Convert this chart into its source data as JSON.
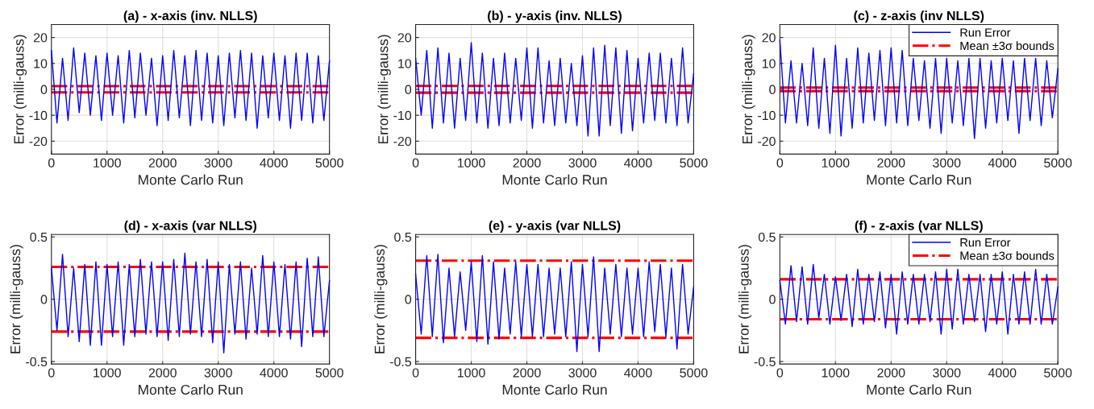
{
  "chart_data": [
    {
      "type": "line",
      "title": "(a) - x-axis (inv. NLLS)",
      "xlabel": "Monte Carlo Run",
      "ylabel": "Error (milli-gauss)",
      "xlim": [
        0,
        5000
      ],
      "xticks": [
        0,
        1000,
        2000,
        3000,
        4000,
        5000
      ],
      "ylim": [
        -25,
        25
      ],
      "yticks": [
        -20,
        -10,
        0,
        10,
        20
      ],
      "grid": true,
      "legend": false,
      "x": [
        0,
        100,
        200,
        300,
        400,
        500,
        600,
        700,
        800,
        900,
        1000,
        1100,
        1200,
        1300,
        1400,
        1500,
        1600,
        1700,
        1800,
        1900,
        2000,
        2100,
        2200,
        2300,
        2400,
        2500,
        2600,
        2700,
        2800,
        2900,
        3000,
        3100,
        3200,
        3300,
        3400,
        3500,
        3600,
        3700,
        3800,
        3900,
        4000,
        4100,
        4200,
        4300,
        4400,
        4500,
        4600,
        4700,
        4800,
        4900,
        5000
      ],
      "series": [
        {
          "color": "#0000ff",
          "values": [
            15,
            -13,
            12,
            -12,
            16,
            -9,
            14,
            -10,
            13,
            -12,
            14,
            -10,
            13,
            -13,
            15,
            -11,
            14,
            -10,
            12,
            -14,
            13,
            -12,
            15,
            -11,
            13,
            -14,
            15,
            -12,
            14,
            -13,
            13,
            -14,
            14,
            -11,
            15,
            -12,
            14,
            -15,
            13,
            -11,
            14,
            -12,
            13,
            -15,
            14,
            -12,
            14,
            -13,
            13,
            -12,
            11
          ]
        }
      ],
      "ref_lines": [
        {
          "axis": "y",
          "value": 1.2,
          "color": "#ff0000",
          "line_style": "dashdot"
        },
        {
          "axis": "y",
          "value": -1.2,
          "color": "#ff0000",
          "line_style": "dashdot"
        }
      ]
    },
    {
      "type": "line",
      "title": "(b) - y-axis (inv. NLLS)",
      "xlabel": "Monte Carlo Run",
      "ylabel": "Error (milli-gauss)",
      "xlim": [
        0,
        5000
      ],
      "xticks": [
        0,
        1000,
        2000,
        3000,
        4000,
        5000
      ],
      "ylim": [
        -25,
        25
      ],
      "yticks": [
        -20,
        -10,
        0,
        10,
        20
      ],
      "grid": true,
      "legend": false,
      "x": [
        0,
        100,
        200,
        300,
        400,
        500,
        600,
        700,
        800,
        900,
        1000,
        1100,
        1200,
        1300,
        1400,
        1500,
        1600,
        1700,
        1800,
        1900,
        2000,
        2100,
        2200,
        2300,
        2400,
        2500,
        2600,
        2700,
        2800,
        2900,
        3000,
        3100,
        3200,
        3300,
        3400,
        3500,
        3600,
        3700,
        3800,
        3900,
        4000,
        4100,
        4200,
        4300,
        4400,
        4500,
        4600,
        4700,
        4800,
        4900,
        5000
      ],
      "series": [
        {
          "color": "#0000ff",
          "values": [
            12,
            -10,
            15,
            -15,
            16,
            -13,
            14,
            -15,
            12,
            -12,
            18,
            -13,
            14,
            -15,
            12,
            -14,
            14,
            -13,
            12,
            -12,
            16,
            -15,
            16,
            -13,
            11,
            -14,
            12,
            -13,
            10,
            -14,
            13,
            -18,
            16,
            -18,
            17,
            -14,
            16,
            -17,
            15,
            -16,
            12,
            -13,
            14,
            -12,
            14,
            -13,
            12,
            -14,
            16,
            -13,
            6
          ]
        }
      ],
      "ref_lines": [
        {
          "axis": "y",
          "value": 1.3,
          "color": "#ff0000",
          "line_style": "dashdot"
        },
        {
          "axis": "y",
          "value": -1.3,
          "color": "#ff0000",
          "line_style": "dashdot"
        }
      ]
    },
    {
      "type": "line",
      "title": "(c) - z-axis (inv NLLS)",
      "xlabel": "Monte Carlo Run",
      "ylabel": "Error (milli-gauss)",
      "xlim": [
        0,
        5000
      ],
      "xticks": [
        0,
        1000,
        2000,
        3000,
        4000,
        5000
      ],
      "ylim": [
        -25,
        25
      ],
      "yticks": [
        -20,
        -10,
        0,
        10,
        20
      ],
      "grid": true,
      "legend": "top right",
      "x": [
        0,
        100,
        200,
        300,
        400,
        500,
        600,
        700,
        800,
        900,
        1000,
        1100,
        1200,
        1300,
        1400,
        1500,
        1600,
        1700,
        1800,
        1900,
        2000,
        2100,
        2200,
        2300,
        2400,
        2500,
        2600,
        2700,
        2800,
        2900,
        3000,
        3100,
        3200,
        3300,
        3400,
        3500,
        3600,
        3700,
        3800,
        3900,
        4000,
        4100,
        4200,
        4300,
        4400,
        4500,
        4600,
        4700,
        4800,
        4900,
        5000
      ],
      "series": [
        {
          "name": "Run Error",
          "color": "#0000ff",
          "values": [
            19,
            -13,
            11,
            -13,
            10,
            -14,
            16,
            -15,
            12,
            -17,
            17,
            -18,
            12,
            -15,
            16,
            -13,
            14,
            -12,
            15,
            -14,
            16,
            -13,
            15,
            -14,
            12,
            -12,
            11,
            -15,
            12,
            -17,
            12,
            -13,
            11,
            -14,
            12,
            -19,
            12,
            -15,
            11,
            -13,
            12,
            -12,
            11,
            -17,
            12,
            -12,
            12,
            -14,
            11,
            -11,
            8
          ]
        }
      ],
      "ref_lines": [
        {
          "axis": "y",
          "value": 0.7,
          "label": "Mean ±3σ bounds",
          "color": "#ff0000",
          "line_style": "dashdot"
        },
        {
          "axis": "y",
          "value": -0.7,
          "color": "#ff0000",
          "line_style": "dashdot"
        }
      ]
    },
    {
      "type": "line",
      "title": "(d) - x-axis (var NLLS)",
      "xlabel": "Monte Carlo Run",
      "ylabel": "Error (milli-gauss)",
      "xlim": [
        0,
        5000
      ],
      "xticks": [
        0,
        1000,
        2000,
        3000,
        4000,
        5000
      ],
      "ylim": [
        -0.52,
        0.52
      ],
      "yticks": [
        -0.5,
        0,
        0.5
      ],
      "grid": true,
      "legend": false,
      "x": [
        0,
        100,
        200,
        300,
        400,
        500,
        600,
        700,
        800,
        900,
        1000,
        1100,
        1200,
        1300,
        1400,
        1500,
        1600,
        1700,
        1800,
        1900,
        2000,
        2100,
        2200,
        2300,
        2400,
        2500,
        2600,
        2700,
        2800,
        2900,
        3000,
        3100,
        3200,
        3300,
        3400,
        3500,
        3600,
        3700,
        3800,
        3900,
        4000,
        4100,
        4200,
        4300,
        4400,
        4500,
        4600,
        4700,
        4800,
        4900,
        5000
      ],
      "series": [
        {
          "color": "#0000ff",
          "values": [
            0.25,
            -0.25,
            0.36,
            -0.3,
            0.25,
            -0.34,
            0.28,
            -0.37,
            0.3,
            -0.37,
            0.28,
            -0.3,
            0.3,
            -0.37,
            0.28,
            -0.3,
            0.32,
            -0.28,
            0.3,
            -0.3,
            0.3,
            -0.33,
            0.32,
            -0.3,
            0.37,
            -0.28,
            0.3,
            -0.3,
            0.32,
            -0.35,
            0.3,
            -0.43,
            0.28,
            -0.28,
            0.3,
            -0.32,
            0.25,
            -0.28,
            0.35,
            -0.3,
            0.3,
            -0.3,
            0.28,
            -0.32,
            0.3,
            -0.38,
            0.33,
            -0.3,
            0.34,
            -0.3,
            0.15
          ]
        }
      ],
      "ref_lines": [
        {
          "axis": "y",
          "value": 0.26,
          "color": "#ff0000",
          "line_style": "dashdot"
        },
        {
          "axis": "y",
          "value": -0.26,
          "color": "#ff0000",
          "line_style": "dashdot"
        }
      ]
    },
    {
      "type": "line",
      "title": "(e) - y-axis (var NLLS)",
      "xlabel": "Monte Carlo Run",
      "ylabel": "Error (milli-gauss)",
      "xlim": [
        0,
        5000
      ],
      "xticks": [
        0,
        1000,
        2000,
        3000,
        4000,
        5000
      ],
      "ylim": [
        -0.52,
        0.52
      ],
      "yticks": [
        -0.5,
        0,
        0.5
      ],
      "grid": true,
      "legend": false,
      "x": [
        0,
        100,
        200,
        300,
        400,
        500,
        600,
        700,
        800,
        900,
        1000,
        1100,
        1200,
        1300,
        1400,
        1500,
        1600,
        1700,
        1800,
        1900,
        2000,
        2100,
        2200,
        2300,
        2400,
        2500,
        2600,
        2700,
        2800,
        2900,
        3000,
        3100,
        3200,
        3300,
        3400,
        3500,
        3600,
        3700,
        3800,
        3900,
        4000,
        4100,
        4200,
        4300,
        4400,
        4500,
        4600,
        4700,
        4800,
        4900,
        5000
      ],
      "series": [
        {
          "color": "#0000ff",
          "values": [
            0.2,
            -0.28,
            0.35,
            -0.3,
            0.36,
            -0.35,
            0.25,
            -0.3,
            0.22,
            -0.25,
            0.3,
            -0.34,
            0.35,
            -0.36,
            0.3,
            -0.32,
            0.25,
            -0.28,
            0.3,
            -0.3,
            0.28,
            -0.3,
            0.28,
            -0.3,
            0.25,
            -0.28,
            0.25,
            -0.3,
            0.3,
            -0.42,
            0.28,
            -0.3,
            0.34,
            -0.42,
            0.25,
            -0.28,
            0.28,
            -0.3,
            0.25,
            -0.28,
            0.25,
            -0.3,
            0.3,
            -0.26,
            0.28,
            -0.3,
            0.25,
            -0.4,
            0.28,
            -0.28,
            0.1
          ]
        }
      ],
      "ref_lines": [
        {
          "axis": "y",
          "value": 0.31,
          "color": "#ff0000",
          "line_style": "dashdot"
        },
        {
          "axis": "y",
          "value": -0.31,
          "color": "#ff0000",
          "line_style": "dashdot"
        }
      ]
    },
    {
      "type": "line",
      "title": "(f) - z-axis (var NLLS)",
      "xlabel": "Monte Carlo Run",
      "ylabel": "Error (milli-gauss)",
      "xlim": [
        0,
        5000
      ],
      "xticks": [
        0,
        1000,
        2000,
        3000,
        4000,
        5000
      ],
      "ylim": [
        -0.52,
        0.52
      ],
      "yticks": [
        -0.5,
        0,
        0.5
      ],
      "grid": true,
      "legend": "top right",
      "x": [
        0,
        100,
        200,
        300,
        400,
        500,
        600,
        700,
        800,
        900,
        1000,
        1100,
        1200,
        1300,
        1400,
        1500,
        1600,
        1700,
        1800,
        1900,
        2000,
        2100,
        2200,
        2300,
        2400,
        2500,
        2600,
        2700,
        2800,
        2900,
        3000,
        3100,
        3200,
        3300,
        3400,
        3500,
        3600,
        3700,
        3800,
        3900,
        4000,
        4100,
        4200,
        4300,
        4400,
        4500,
        4600,
        4700,
        4800,
        4900,
        5000
      ],
      "series": [
        {
          "name": "Run Error",
          "color": "#0000ff",
          "values": [
            0.15,
            -0.2,
            0.27,
            -0.18,
            0.26,
            -0.2,
            0.28,
            -0.15,
            0.2,
            -0.2,
            0.18,
            -0.17,
            0.2,
            -0.22,
            0.24,
            -0.2,
            0.2,
            -0.18,
            0.22,
            -0.23,
            0.2,
            -0.28,
            0.22,
            -0.2,
            0.2,
            -0.2,
            0.2,
            -0.18,
            0.22,
            -0.28,
            0.24,
            -0.24,
            0.24,
            -0.2,
            0.2,
            -0.18,
            0.2,
            -0.26,
            0.2,
            -0.2,
            0.22,
            -0.28,
            0.2,
            -0.2,
            0.22,
            -0.2,
            0.24,
            -0.2,
            0.2,
            -0.2,
            0.1
          ]
        }
      ],
      "ref_lines": [
        {
          "axis": "y",
          "value": 0.16,
          "label": "Mean ±3σ bounds",
          "color": "#ff0000",
          "line_style": "dashdot"
        },
        {
          "axis": "y",
          "value": -0.16,
          "color": "#ff0000",
          "line_style": "dashdot"
        }
      ]
    }
  ]
}
